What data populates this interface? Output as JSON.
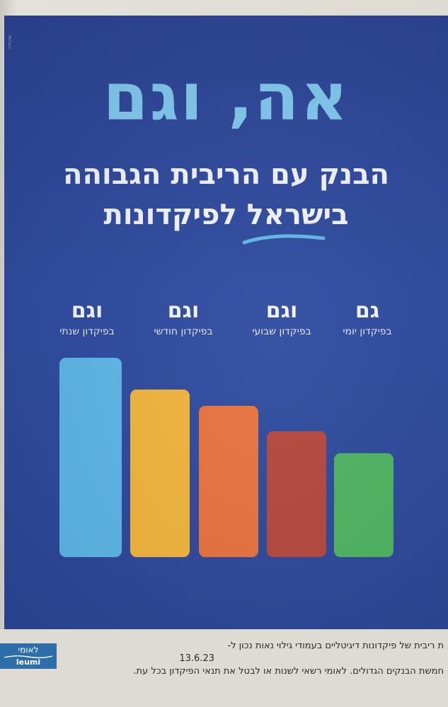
{
  "ad": {
    "credit": "McCann",
    "headline": "אה, וגם",
    "subline1": "הבנק עם הריבית הגבוהה",
    "subline2": "בישראל לפיקדונות",
    "columns": [
      {
        "big": "גם",
        "small": "בפיקדון יומי",
        "bar_color": "#4bb35e",
        "level": 0.52
      },
      {
        "big": "וגם",
        "small": "בפיקדון שבועי",
        "bar_color": "#b3453a",
        "level": 0.63
      },
      {
        "big": "וגם",
        "small": "בפיקדון חודשי",
        "bar_color": "#e8703c",
        "level": 0.76
      },
      {
        "big": "וגם",
        "small": "בפיקדון שנתי",
        "bar_color": "#f1b33a",
        "level": 0.84
      },
      {
        "big": "",
        "small": "",
        "bar_color": "#5bb5e6",
        "level": 1.0
      }
    ]
  },
  "footer": {
    "brand_he": "לאומי",
    "brand_en": "leumi",
    "line1": "ת ריבית של פיקדונות דיגיטליים בעמודי גילוי נאות נכון ל-",
    "line2": "13.6.23",
    "line3": "חמשת הבנקים הגדולים. לאומי רשאי לשנות או לבטל את תנאי הפיקדון בכל עת."
  }
}
